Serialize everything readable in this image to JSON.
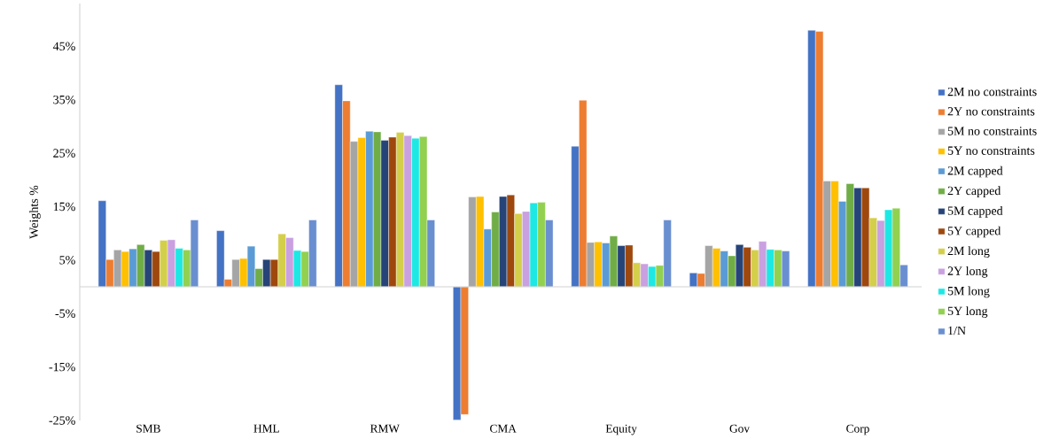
{
  "chart_data": {
    "type": "bar",
    "ylabel": "Weights %",
    "categories": [
      "SMB",
      "HML",
      "RMW",
      "CMA",
      "Equity",
      "Gov",
      "Corp"
    ],
    "series": [
      {
        "name": "2M no constraints",
        "color": "#4472c4",
        "values": [
          16.1,
          10.5,
          37.8,
          -24.9,
          26.3,
          2.6,
          48.0
        ]
      },
      {
        "name": "2Y no constraints",
        "color": "#ed7d31",
        "values": [
          5.1,
          1.4,
          34.8,
          -23.9,
          34.9,
          2.5,
          47.8
        ]
      },
      {
        "name": "5M no constraints",
        "color": "#a5a5a5",
        "values": [
          6.9,
          5.1,
          27.2,
          16.8,
          8.3,
          7.7,
          19.8
        ]
      },
      {
        "name": "5Y no constraints",
        "color": "#ffc000",
        "values": [
          6.6,
          5.3,
          27.9,
          16.9,
          8.4,
          7.2,
          19.8
        ]
      },
      {
        "name": "2M capped",
        "color": "#5b9bd5",
        "values": [
          7.1,
          7.6,
          29.1,
          10.8,
          8.2,
          6.7,
          16.0
        ]
      },
      {
        "name": "2Y capped",
        "color": "#70ad47",
        "values": [
          7.9,
          3.4,
          29.0,
          14.0,
          9.5,
          5.8,
          19.3
        ]
      },
      {
        "name": "5M capped",
        "color": "#264478",
        "values": [
          6.9,
          5.1,
          27.4,
          16.9,
          7.7,
          7.9,
          18.5
        ]
      },
      {
        "name": "5Y capped",
        "color": "#9e480e",
        "values": [
          6.6,
          5.1,
          28.0,
          17.2,
          7.8,
          7.4,
          18.5
        ]
      },
      {
        "name": "2M long",
        "color": "#d4cf4a",
        "values": [
          8.7,
          9.9,
          28.9,
          13.7,
          4.5,
          6.9,
          12.9
        ]
      },
      {
        "name": "2Y long",
        "color": "#c9a0e0",
        "values": [
          8.8,
          9.2,
          28.3,
          14.1,
          4.3,
          8.5,
          12.4
        ]
      },
      {
        "name": "5M long",
        "color": "#1de8e4",
        "values": [
          7.2,
          6.8,
          27.8,
          15.7,
          3.8,
          7.0,
          14.4
        ]
      },
      {
        "name": "5Y long",
        "color": "#92d050",
        "values": [
          6.9,
          6.6,
          28.1,
          15.8,
          4.0,
          6.9,
          14.7
        ]
      },
      {
        "name": "1/N",
        "color": "#6a8fd0",
        "values": [
          12.5,
          12.5,
          12.5,
          12.5,
          12.5,
          6.7,
          4.1
        ]
      }
    ],
    "ylim": [
      -25,
      53
    ],
    "yticks": [
      {
        "value": -25,
        "label": "-25%"
      },
      {
        "value": -15,
        "label": "-15%"
      },
      {
        "value": -5,
        "label": "-5%"
      },
      {
        "value": 5,
        "label": "5%"
      },
      {
        "value": 15,
        "label": "15%"
      },
      {
        "value": 25,
        "label": "25%"
      },
      {
        "value": 35,
        "label": "35%"
      },
      {
        "value": 45,
        "label": "45%"
      }
    ],
    "legend": "right",
    "grid": false
  }
}
